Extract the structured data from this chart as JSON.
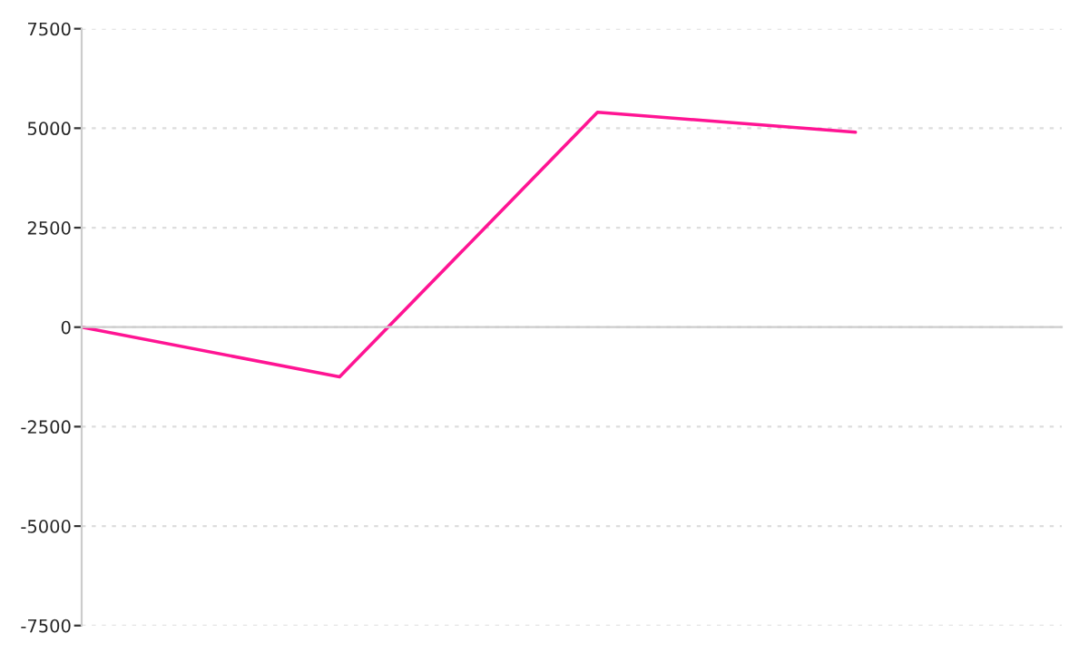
{
  "chart_data": {
    "type": "line",
    "categories": [
      null,
      null,
      null,
      null
    ],
    "series": [
      {
        "color": "#ff1493",
        "values": [
          0,
          -1250,
          5400,
          4900
        ]
      }
    ],
    "ylim": [
      -7500,
      7500
    ],
    "yticks": [
      -7500,
      -5000,
      -2500,
      0,
      2500,
      5000,
      7500
    ],
    "grid": "y",
    "marker": "none",
    "line_style": "solid",
    "legend": false
  }
}
